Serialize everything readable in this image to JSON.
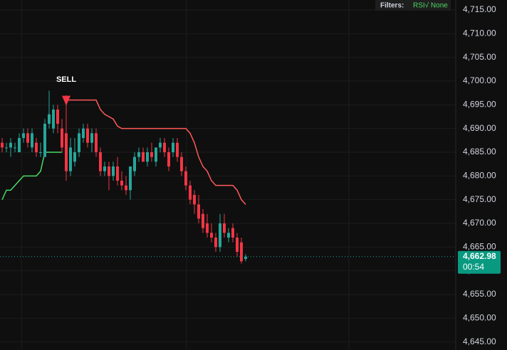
{
  "chart_data": {
    "type": "candlestick",
    "filters_label": "Filters:",
    "filters_value": "RSI√ None",
    "ylim": [
      4643.3,
      4717.1
    ],
    "yticks": [
      {
        "value": 4645,
        "label": "4,645.00"
      },
      {
        "value": 4650,
        "label": "4,650.00"
      },
      {
        "value": 4655,
        "label": "4,655.00"
      },
      {
        "value": 4660,
        "label": "4,660.00"
      },
      {
        "value": 4665,
        "label": "4,665.00"
      },
      {
        "value": 4670,
        "label": "4,670.00"
      },
      {
        "value": 4675,
        "label": "4,675.00"
      },
      {
        "value": 4680,
        "label": "4,680.00"
      },
      {
        "value": 4685,
        "label": "4,685.00"
      },
      {
        "value": 4690,
        "label": "4,690.00"
      },
      {
        "value": 4695,
        "label": "4,695.00"
      },
      {
        "value": 4700,
        "label": "4,700.00"
      },
      {
        "value": 4705,
        "label": "4,705.00"
      },
      {
        "value": 4710,
        "label": "4,710.00"
      },
      {
        "value": 4715,
        "label": "4,715.00"
      }
    ],
    "up_color": "#26a69a",
    "down_color": "#f23645",
    "open": [
      4687,
      4686,
      4686,
      4686,
      4685,
      4688,
      4689,
      4686,
      4687,
      4685,
      4684,
      4691,
      4690,
      4694,
      4690,
      4689,
      4681,
      4683,
      4685,
      4688,
      4690,
      4687,
      4689,
      4685,
      4681,
      4682,
      4680,
      4682,
      4679,
      4678,
      4677,
      4681,
      4684,
      4685,
      4683,
      4685,
      4683,
      4686,
      4687,
      4685,
      4685,
      4687,
      4684,
      4681,
      4678,
      4676,
      4674,
      4672,
      4670,
      4668,
      4667,
      4665,
      4670,
      4667,
      4669,
      4667,
      4666,
      4662.5
    ],
    "high": [
      4688,
      4687,
      4688,
      4687,
      4689,
      4690,
      4690,
      4690,
      4688,
      4687,
      4692,
      4698,
      4695,
      4695,
      4692,
      4697,
      4688,
      4688,
      4690,
      4691,
      4691,
      4690,
      4690,
      4686,
      4683,
      4683,
      4683,
      4684,
      4681,
      4680,
      4682,
      4685,
      4686,
      4686,
      4686,
      4687,
      4686,
      4688,
      4688,
      4686,
      4688,
      4688,
      4685,
      4682,
      4679,
      4677,
      4676,
      4673,
      4672,
      4670,
      4668,
      4672,
      4672,
      4669,
      4670,
      4668,
      4667,
      4663.5
    ],
    "low": [
      4685,
      4685,
      4684,
      4685,
      4685,
      4687,
      4686,
      4685,
      4684,
      4684,
      4684,
      4690,
      4689,
      4689,
      4685,
      4679,
      4680,
      4682,
      4684,
      4687,
      4686,
      4685,
      4684,
      4680,
      4680,
      4677,
      4679,
      4678,
      4677,
      4676,
      4675,
      4680,
      4683,
      4683,
      4682,
      4683,
      4682,
      4685,
      4684,
      4681,
      4684,
      4683,
      4680,
      4677,
      4674,
      4672,
      4670,
      4668,
      4667,
      4666,
      4664,
      4664,
      4667,
      4666,
      4666,
      4663,
      4661.5,
      4662
    ],
    "close": [
      4686,
      4686,
      4687,
      4686,
      4688,
      4689,
      4687,
      4689,
      4685,
      4685,
      4691,
      4693,
      4694,
      4691,
      4686,
      4681,
      4686,
      4685,
      4689,
      4690,
      4687,
      4689,
      4685,
      4681,
      4682,
      4680,
      4682,
      4679,
      4678,
      4677,
      4682,
      4684,
      4685,
      4683,
      4685,
      4684,
      4686,
      4687,
      4685,
      4682,
      4687,
      4684,
      4681,
      4678,
      4675,
      4674,
      4671,
      4669,
      4668,
      4667,
      4665,
      4670,
      4668,
      4668,
      4667,
      4664,
      4662,
      4662.98
    ],
    "lines": [
      {
        "color": "#4cd964",
        "values": [
          4675,
          4677,
          4677,
          4678,
          4679,
          4680,
          4680,
          4680,
          4680,
          4681,
          4685,
          4685,
          4685,
          4685,
          4685,
          null,
          null,
          null,
          null,
          null,
          null,
          null,
          null,
          null,
          null,
          null,
          null,
          null,
          null,
          null,
          null,
          null,
          null,
          null,
          null,
          null,
          null,
          null,
          null,
          null,
          null,
          null,
          null,
          null,
          null,
          null,
          null,
          null,
          null,
          null,
          null,
          null,
          null,
          null,
          null,
          null,
          null,
          null
        ]
      },
      {
        "color": "#ff5a5a",
        "values": [
          null,
          null,
          null,
          null,
          null,
          null,
          null,
          null,
          null,
          null,
          null,
          null,
          null,
          null,
          null,
          4696,
          4696,
          4696,
          4696,
          4696,
          4696,
          4696,
          4696,
          4694,
          4693,
          4692.5,
          4692,
          4690.5,
          4690,
          4690,
          4690,
          4690,
          4690,
          4690,
          4690,
          4690,
          4690,
          4690,
          4690,
          4690,
          4690,
          4690,
          4690,
          4690,
          4689,
          4687,
          4684,
          4682,
          4681,
          4679,
          4678,
          4678,
          4678,
          4678,
          4678,
          4677,
          4675,
          4674
        ]
      }
    ],
    "signals": [
      null,
      null,
      null,
      null,
      null,
      null,
      null,
      null,
      null,
      null,
      null,
      null,
      null,
      null,
      null,
      "SELL",
      null,
      null,
      null,
      null,
      null,
      null,
      null,
      null,
      null,
      null,
      null,
      null,
      null,
      null,
      null,
      null,
      null,
      null,
      null,
      null,
      null,
      null,
      null,
      null,
      null,
      null,
      null,
      null,
      null,
      null,
      null,
      null,
      null,
      null,
      null,
      null,
      null,
      null,
      null,
      null,
      null,
      null
    ],
    "last_price": {
      "value": 4662.98,
      "label": "4,662.98"
    },
    "countdown": "00:54"
  }
}
